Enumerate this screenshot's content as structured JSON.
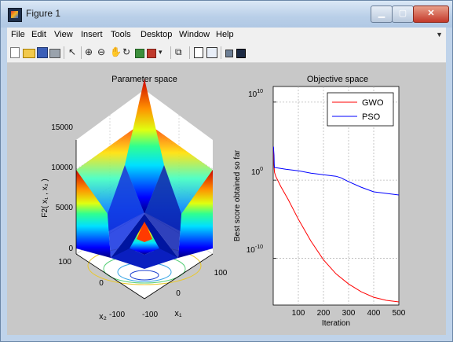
{
  "window": {
    "title": "Figure 1"
  },
  "menu": [
    "File",
    "Edit",
    "View",
    "Insert",
    "Tools",
    "Desktop",
    "Window",
    "Help"
  ],
  "toolbar_icons": [
    "new-figure-icon",
    "open-file-icon",
    "save-icon",
    "print-icon",
    "pointer-icon",
    "zoom-in-icon",
    "zoom-out-icon",
    "pan-icon",
    "rotate-icon",
    "data-cursor-icon",
    "brush-icon",
    "link-icon",
    "colorbar-icon",
    "legend-icon",
    "hide-tools-icon",
    "show-tools-icon"
  ],
  "plots": {
    "left": {
      "title": "Parameter space",
      "zlabel": "F2( x₁ , x₂ )",
      "xlabel": "x₁",
      "ylabel": "x₂",
      "z_ticks": [
        "15000",
        "10000",
        "5000",
        "0"
      ],
      "x1_ticks": [
        "100",
        "0",
        "-100"
      ],
      "x2_ticks": [
        "100",
        "0",
        "-100"
      ]
    },
    "right": {
      "title": "Objective space",
      "xlabel": "Iteration",
      "ylabel": "Best score obtained so far",
      "y_tick_labels": [
        {
          "base": "10",
          "exp": "10"
        },
        {
          "base": "10",
          "exp": "0"
        },
        {
          "base": "10",
          "exp": "-10"
        }
      ],
      "x_ticks": [
        "100",
        "200",
        "300",
        "400",
        "500"
      ],
      "legend": [
        {
          "name": "GWO",
          "color": "#ff0000"
        },
        {
          "name": "PSO",
          "color": "#0000ff"
        }
      ]
    }
  },
  "chart_data": {
    "type": "line",
    "title": "Objective space",
    "xlabel": "Iteration",
    "ylabel": "Best score obtained so far",
    "yscale": "log",
    "xlim": [
      0,
      500
    ],
    "ylim_exponent": [
      -16,
      12
    ],
    "grid": true,
    "legend_position": "top-right",
    "series": [
      {
        "name": "GWO",
        "color": "#ff0000",
        "x": [
          1,
          3,
          5,
          10,
          30,
          60,
          100,
          150,
          200,
          250,
          300,
          350,
          400,
          450,
          500
        ],
        "log10_y": [
          4.2,
          2.0,
          1.0,
          0.5,
          -0.8,
          -2.5,
          -5.0,
          -7.8,
          -10.2,
          -12.0,
          -13.3,
          -14.3,
          -15.0,
          -15.4,
          -15.6
        ]
      },
      {
        "name": "PSO",
        "color": "#0000ff",
        "x": [
          1,
          2,
          3,
          4,
          5,
          10,
          50,
          100,
          150,
          200,
          250,
          270,
          300,
          350,
          400,
          450,
          500
        ],
        "log10_y": [
          4.3,
          3.8,
          3.2,
          2.1,
          1.6,
          1.6,
          1.4,
          1.2,
          0.9,
          0.7,
          0.5,
          0.3,
          -0.2,
          -0.9,
          -1.5,
          -1.7,
          -1.9
        ]
      }
    ]
  }
}
